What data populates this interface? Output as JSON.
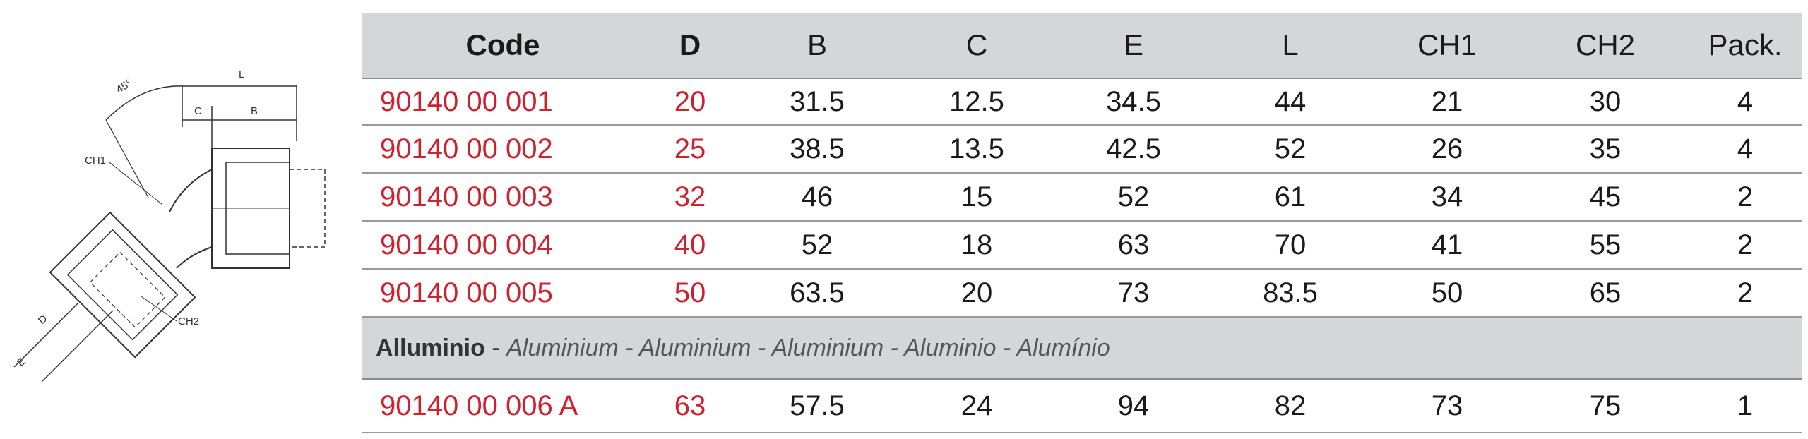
{
  "drawing": {
    "labels": {
      "angle": "45°",
      "L": "L",
      "C": "C",
      "B": "B",
      "CH1": "CH1",
      "CH2": "CH2",
      "D": "D",
      "E": "E"
    }
  },
  "table": {
    "headers": [
      "Code",
      "D",
      "B",
      "C",
      "E",
      "L",
      "CH1",
      "CH2",
      "Pack."
    ],
    "rows": [
      [
        "90140 00 001",
        "20",
        "31.5",
        "12.5",
        "34.5",
        "44",
        "21",
        "30",
        "4"
      ],
      [
        "90140 00 002",
        "25",
        "38.5",
        "13.5",
        "42.5",
        "52",
        "26",
        "35",
        "4"
      ],
      [
        "90140 00 003",
        "32",
        "46",
        "15",
        "52",
        "61",
        "34",
        "45",
        "2"
      ],
      [
        "90140 00 004",
        "40",
        "52",
        "18",
        "63",
        "70",
        "41",
        "55",
        "2"
      ],
      [
        "90140 00 005",
        "50",
        "63.5",
        "20",
        "73",
        "83.5",
        "50",
        "65",
        "2"
      ]
    ],
    "section": {
      "bold": "Alluminio",
      "sep": " - ",
      "italic": "Aluminium - Aluminium - Aluminium - Aluminio - Alumínio"
    },
    "extra_row": [
      "90140 00 006 A",
      "63",
      "57.5",
      "24",
      "94",
      "82",
      "73",
      "75",
      "1"
    ]
  },
  "colors": {
    "accent_red": "#d0202e",
    "header_bg": "#d5d6d8"
  }
}
